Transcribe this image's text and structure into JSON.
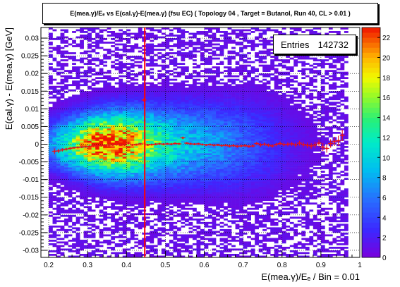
{
  "chart_data": {
    "type": "heatmap",
    "title": "E(mea.γ)/Eₑ vs E(cal.γ)-E(mea.γ) (fsu EC) ( Topology 04 , Target = Butanol, Run 40, CL > 0.01 )",
    "xlabel": "E(mea.γ)/Eₑ / Bin = 0.01",
    "ylabel": "E(cal.γ) - E(mea.γ) [GeV]",
    "xlim": [
      0.18,
      1.0
    ],
    "ylim": [
      -0.032,
      0.033
    ],
    "x_ticks": [
      "0.2",
      "0.3",
      "0.4",
      "0.5",
      "0.6",
      "0.7",
      "0.8",
      "0.9",
      "1"
    ],
    "y_ticks": [
      "0.03",
      "0.025",
      "0.02",
      "0.015",
      "0.01",
      "0.005",
      "0",
      "-0.005",
      "-0.01",
      "-0.015",
      "-0.02",
      "-0.025",
      "-0.03"
    ],
    "colorbar": {
      "range": [
        0,
        23
      ],
      "ticks": [
        "22",
        "20",
        "18",
        "16",
        "14",
        "12",
        "10",
        "8",
        "6",
        "4",
        "2",
        "0"
      ]
    },
    "stats": {
      "label": "Entries",
      "value": "142732"
    },
    "vertical_line": {
      "x": 0.447,
      "color": "#ff0000"
    },
    "grid": true,
    "profile_points": [
      {
        "x": 0.215,
        "y": -0.002,
        "err": 0.0008
      },
      {
        "x": 0.225,
        "y": -0.0019,
        "err": 0.0006
      },
      {
        "x": 0.235,
        "y": -0.0016,
        "err": 0.0005
      },
      {
        "x": 0.245,
        "y": -0.0014,
        "err": 0.0004
      },
      {
        "x": 0.255,
        "y": -0.0012,
        "err": 0.0004
      },
      {
        "x": 0.265,
        "y": -0.001,
        "err": 0.0003
      },
      {
        "x": 0.275,
        "y": -0.0009,
        "err": 0.0003
      },
      {
        "x": 0.285,
        "y": -0.0008,
        "err": 0.0003
      },
      {
        "x": 0.295,
        "y": -0.0007,
        "err": 0.0003
      },
      {
        "x": 0.305,
        "y": -0.0006,
        "err": 0.0003
      },
      {
        "x": 0.315,
        "y": -0.0005,
        "err": 0.0003
      },
      {
        "x": 0.325,
        "y": -0.0004,
        "err": 0.0003
      },
      {
        "x": 0.335,
        "y": -0.0004,
        "err": 0.0003
      },
      {
        "x": 0.345,
        "y": -0.0003,
        "err": 0.0003
      },
      {
        "x": 0.355,
        "y": -0.0003,
        "err": 0.0003
      },
      {
        "x": 0.365,
        "y": -0.0002,
        "err": 0.0003
      },
      {
        "x": 0.375,
        "y": -0.0001,
        "err": 0.0003
      },
      {
        "x": 0.385,
        "y": -0.0001,
        "err": 0.0003
      },
      {
        "x": 0.395,
        "y": -0.0002,
        "err": 0.0003
      },
      {
        "x": 0.405,
        "y": 0.0003,
        "err": 0.0004
      },
      {
        "x": 0.415,
        "y": -0.0002,
        "err": 0.0003
      },
      {
        "x": 0.425,
        "y": -0.0001,
        "err": 0.0003
      },
      {
        "x": 0.435,
        "y": 0.0001,
        "err": 0.0003
      },
      {
        "x": 0.445,
        "y": 0.0125,
        "err": 0.0005
      },
      {
        "x": 0.455,
        "y": -0.0002,
        "err": 0.0003
      },
      {
        "x": 0.465,
        "y": -0.0001,
        "err": 0.0003
      },
      {
        "x": 0.475,
        "y": 0.0,
        "err": 0.0003
      },
      {
        "x": 0.485,
        "y": 0.0001,
        "err": 0.0003
      },
      {
        "x": 0.495,
        "y": 0.0,
        "err": 0.0003
      },
      {
        "x": 0.505,
        "y": 0.0001,
        "err": 0.0003
      },
      {
        "x": 0.515,
        "y": 0.0,
        "err": 0.0003
      },
      {
        "x": 0.525,
        "y": 0.0002,
        "err": 0.0003
      },
      {
        "x": 0.535,
        "y": 0.0001,
        "err": 0.0003
      },
      {
        "x": 0.545,
        "y": 0.0018,
        "err": 0.0004
      },
      {
        "x": 0.555,
        "y": 0.0003,
        "err": 0.0003
      },
      {
        "x": 0.565,
        "y": 0.0001,
        "err": 0.0003
      },
      {
        "x": 0.575,
        "y": 0.0,
        "err": 0.0003
      },
      {
        "x": 0.585,
        "y": 0.0001,
        "err": 0.0003
      },
      {
        "x": 0.595,
        "y": -0.0001,
        "err": 0.0003
      },
      {
        "x": 0.605,
        "y": -0.0002,
        "err": 0.0003
      },
      {
        "x": 0.615,
        "y": -0.0001,
        "err": 0.0003
      },
      {
        "x": 0.625,
        "y": -0.0003,
        "err": 0.0003
      },
      {
        "x": 0.635,
        "y": -0.0002,
        "err": 0.0003
      },
      {
        "x": 0.645,
        "y": -0.0004,
        "err": 0.0003
      },
      {
        "x": 0.655,
        "y": -0.0003,
        "err": 0.0003
      },
      {
        "x": 0.665,
        "y": -0.0005,
        "err": 0.0004
      },
      {
        "x": 0.675,
        "y": -0.0004,
        "err": 0.0004
      },
      {
        "x": 0.685,
        "y": -0.0006,
        "err": 0.0004
      },
      {
        "x": 0.695,
        "y": -0.0005,
        "err": 0.0004
      },
      {
        "x": 0.705,
        "y": -0.0004,
        "err": 0.0004
      },
      {
        "x": 0.715,
        "y": -0.0006,
        "err": 0.0004
      },
      {
        "x": 0.725,
        "y": -0.0005,
        "err": 0.0004
      },
      {
        "x": 0.735,
        "y": 0.0002,
        "err": 0.0005
      },
      {
        "x": 0.745,
        "y": -0.0002,
        "err": 0.0005
      },
      {
        "x": 0.755,
        "y": 0.0,
        "err": 0.0005
      },
      {
        "x": 0.765,
        "y": -0.0003,
        "err": 0.0005
      },
      {
        "x": 0.775,
        "y": -0.0005,
        "err": 0.0005
      },
      {
        "x": 0.785,
        "y": -0.0001,
        "err": 0.0005
      },
      {
        "x": 0.795,
        "y": 0.0002,
        "err": 0.0006
      },
      {
        "x": 0.805,
        "y": -0.0001,
        "err": 0.0006
      },
      {
        "x": 0.815,
        "y": 0.0,
        "err": 0.0006
      },
      {
        "x": 0.825,
        "y": 0.0001,
        "err": 0.0006
      },
      {
        "x": 0.835,
        "y": -0.0002,
        "err": 0.0007
      },
      {
        "x": 0.845,
        "y": 0.0003,
        "err": 0.0007
      },
      {
        "x": 0.855,
        "y": -0.0001,
        "err": 0.0007
      },
      {
        "x": 0.865,
        "y": -0.0003,
        "err": 0.0008
      },
      {
        "x": 0.875,
        "y": -0.0005,
        "err": 0.0008
      },
      {
        "x": 0.885,
        "y": -0.0002,
        "err": 0.0009
      },
      {
        "x": 0.895,
        "y": 0.0003,
        "err": 0.001
      },
      {
        "x": 0.905,
        "y": -0.0008,
        "err": 0.0011
      },
      {
        "x": 0.915,
        "y": -0.0012,
        "err": 0.0012
      },
      {
        "x": 0.925,
        "y": 0.0002,
        "err": 0.0012
      },
      {
        "x": 0.935,
        "y": 0.0008,
        "err": 0.0013
      },
      {
        "x": 0.945,
        "y": 0.001,
        "err": 0.0014
      },
      {
        "x": 0.955,
        "y": 0.0025,
        "err": 0.0016
      }
    ]
  }
}
